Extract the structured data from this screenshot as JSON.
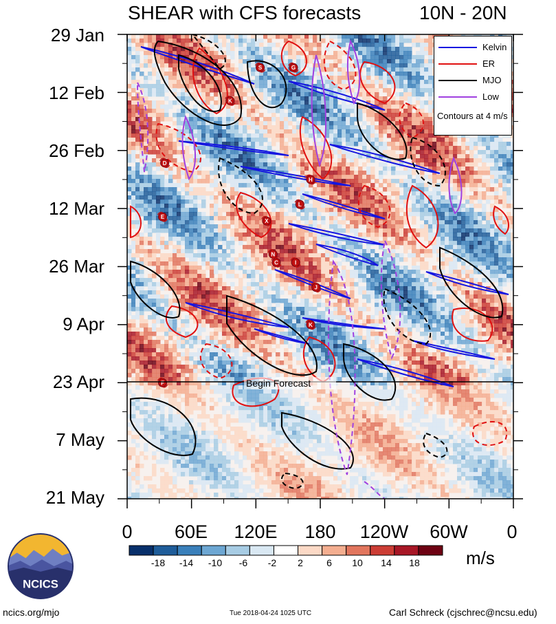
{
  "chart_data": {
    "type": "heatmap",
    "title": "SHEAR with CFS forecasts",
    "subtitle": "10N - 20N",
    "x_tick_labels": [
      "0",
      "60E",
      "120E",
      "180",
      "120W",
      "60W",
      "0"
    ],
    "x_ticks_deg": [
      0,
      60,
      120,
      180,
      240,
      300,
      360
    ],
    "x_range_deg": [
      0,
      360
    ],
    "y_tick_labels": [
      "29 Jan",
      "12 Feb",
      "26 Feb",
      "12 Mar",
      "26 Mar",
      "9 Apr",
      "23 Apr",
      "7 May",
      "21 May"
    ],
    "y_range": [
      "29 Jan",
      "21 May"
    ],
    "colorbar": {
      "labels": [
        "-18",
        "-14",
        "-10",
        "-6",
        "-2",
        "2",
        "6",
        "10",
        "14",
        "18"
      ],
      "colors": [
        "#08306b",
        "#1f5d9a",
        "#3a80bb",
        "#6da7d3",
        "#a7cce4",
        "#d9e8f3",
        "#ffffff",
        "#fcd9c6",
        "#f4ae90",
        "#e2765e",
        "#cc3d35",
        "#a81726",
        "#6e0213"
      ],
      "units": "m/s"
    },
    "legend": {
      "entries": [
        {
          "name": "Kelvin",
          "color": "#1010e0"
        },
        {
          "name": "ER",
          "color": "#e01010"
        },
        {
          "name": "MJO",
          "color": "#000000"
        },
        {
          "name": "Low",
          "color": "#a040e0"
        }
      ],
      "note": "Contours at 4 m/s",
      "placement": "top-right"
    },
    "annotation": "Begin Forecast",
    "forecast_start": "23 Apr",
    "storm_markers": [
      {
        "label": "S",
        "lon": 124,
        "date": "6 Feb"
      },
      {
        "label": "G",
        "lon": 155,
        "date": "6 Feb"
      },
      {
        "label": "K",
        "lon": 96,
        "date": "14 Feb"
      },
      {
        "label": "D",
        "lon": 35,
        "date": "1 Mar"
      },
      {
        "label": "H",
        "lon": 171,
        "date": "5 Mar"
      },
      {
        "label": "L",
        "lon": 161,
        "date": "11 Mar"
      },
      {
        "label": "E",
        "lon": 33,
        "date": "14 Mar"
      },
      {
        "label": "X",
        "lon": 130,
        "date": "15 Mar"
      },
      {
        "label": "N",
        "lon": 136,
        "date": "23 Mar"
      },
      {
        "label": "C",
        "lon": 139,
        "date": "25 Mar"
      },
      {
        "label": "I",
        "lon": 157,
        "date": "25 Mar"
      },
      {
        "label": "J",
        "lon": 176,
        "date": "31 Mar"
      },
      {
        "label": "K",
        "lon": 171,
        "date": "9 Apr"
      },
      {
        "label": "F",
        "lon": 33,
        "date": "23 Apr"
      }
    ]
  },
  "footer": {
    "left": "ncics.org/mjo",
    "middle": "Tue 2018-04-24 1025 UTC",
    "right": "Carl Schreck (cjschrec@ncsu.edu)"
  },
  "logo": {
    "text": "NCICS",
    "colors": {
      "sky": "#f2b630",
      "mountains": "#28306b",
      "hills": "#6f7fc2"
    }
  }
}
